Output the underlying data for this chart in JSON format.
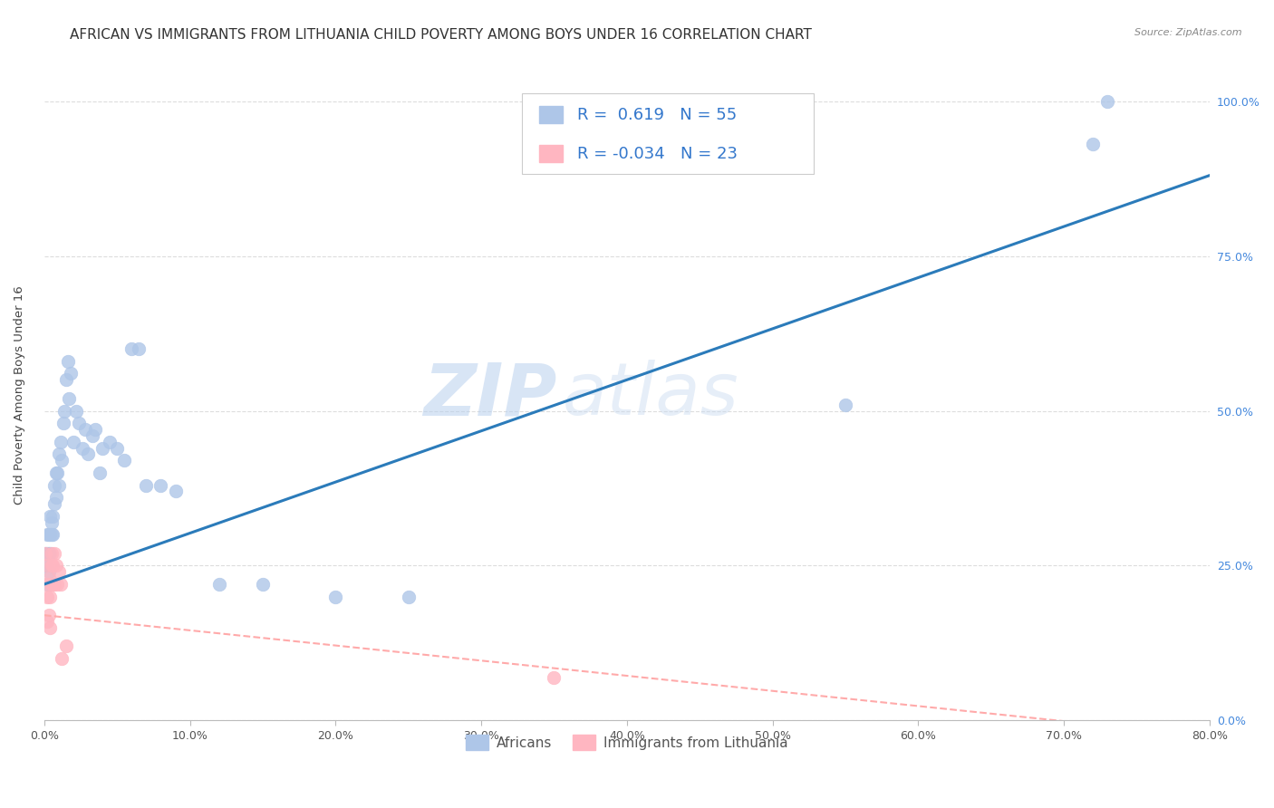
{
  "title": "AFRICAN VS IMMIGRANTS FROM LITHUANIA CHILD POVERTY AMONG BOYS UNDER 16 CORRELATION CHART",
  "source": "Source: ZipAtlas.com",
  "ylabel": "Child Poverty Among Boys Under 16",
  "xlabel_ticks": [
    "0.0%",
    "10.0%",
    "20.0%",
    "30.0%",
    "40.0%",
    "50.0%",
    "60.0%",
    "70.0%",
    "80.0%"
  ],
  "ytick_labels": [
    "0.0%",
    "25.0%",
    "50.0%",
    "75.0%",
    "100.0%"
  ],
  "xlim": [
    0.0,
    0.8
  ],
  "ylim": [
    0.0,
    1.05
  ],
  "watermark_zip": "ZIP",
  "watermark_atlas": "atlas",
  "african_R": 0.619,
  "african_N": 55,
  "lithuania_R": -0.034,
  "lithuania_N": 23,
  "african_color": "#aec6e8",
  "lithuania_color": "#ffb6c1",
  "regression_blue": "#2b7bba",
  "regression_pink": "#ffaaaa",
  "legend_label_african": "Africans",
  "legend_label_lithuania": "Immigrants from Lithuania",
  "african_x": [
    0.001,
    0.001,
    0.002,
    0.002,
    0.002,
    0.003,
    0.003,
    0.003,
    0.004,
    0.004,
    0.004,
    0.005,
    0.005,
    0.006,
    0.006,
    0.007,
    0.007,
    0.008,
    0.008,
    0.009,
    0.01,
    0.01,
    0.011,
    0.012,
    0.013,
    0.014,
    0.015,
    0.016,
    0.017,
    0.018,
    0.02,
    0.022,
    0.024,
    0.026,
    0.028,
    0.03,
    0.033,
    0.035,
    0.038,
    0.04,
    0.045,
    0.05,
    0.055,
    0.06,
    0.065,
    0.07,
    0.08,
    0.09,
    0.12,
    0.15,
    0.2,
    0.25,
    0.55,
    0.72,
    0.73
  ],
  "african_y": [
    0.25,
    0.27,
    0.22,
    0.27,
    0.3,
    0.24,
    0.27,
    0.3,
    0.27,
    0.3,
    0.33,
    0.3,
    0.32,
    0.3,
    0.33,
    0.35,
    0.38,
    0.36,
    0.4,
    0.4,
    0.38,
    0.43,
    0.45,
    0.42,
    0.48,
    0.5,
    0.55,
    0.58,
    0.52,
    0.56,
    0.45,
    0.5,
    0.48,
    0.44,
    0.47,
    0.43,
    0.46,
    0.47,
    0.4,
    0.44,
    0.45,
    0.44,
    0.42,
    0.6,
    0.6,
    0.38,
    0.38,
    0.37,
    0.22,
    0.22,
    0.2,
    0.2,
    0.51,
    0.93,
    1.0
  ],
  "lithuania_x": [
    0.001,
    0.001,
    0.002,
    0.002,
    0.002,
    0.003,
    0.003,
    0.004,
    0.004,
    0.005,
    0.005,
    0.005,
    0.006,
    0.006,
    0.007,
    0.007,
    0.008,
    0.009,
    0.01,
    0.011,
    0.012,
    0.015,
    0.35
  ],
  "lithuania_y": [
    0.25,
    0.27,
    0.22,
    0.16,
    0.2,
    0.17,
    0.23,
    0.15,
    0.2,
    0.22,
    0.25,
    0.27,
    0.22,
    0.25,
    0.27,
    0.22,
    0.25,
    0.22,
    0.24,
    0.22,
    0.1,
    0.12,
    0.07
  ],
  "background_color": "#ffffff",
  "grid_color": "#dddddd",
  "title_fontsize": 11,
  "axis_label_fontsize": 9.5,
  "tick_fontsize": 9,
  "legend_fontsize": 12
}
